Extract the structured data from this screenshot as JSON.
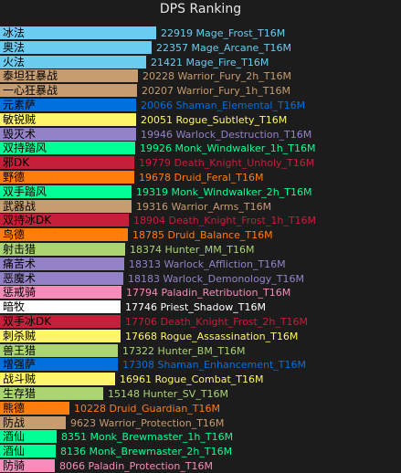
{
  "chart_data": {
    "type": "bar",
    "orientation": "horizontal",
    "title": "DPS Ranking",
    "xlim": [
      0,
      23500
    ],
    "grid": false,
    "legend": "none",
    "categories": [
      "冰法",
      "奥法",
      "火法",
      "泰坦狂暴战",
      "一心狂暴战",
      "元素萨",
      "敏锐贼",
      "毁灭术",
      "双持踏风",
      "邪DK",
      "野德",
      "双手踏风",
      "武器战",
      "双持冰DK",
      "鸟德",
      "射击猎",
      "痛苦术",
      "恶魔术",
      "惩戒骑",
      "暗牧",
      "双手冰DK",
      "刺杀贼",
      "兽王猎",
      "增强萨",
      "战斗贼",
      "生存猎",
      "熊德",
      "防战",
      "酒仙",
      "酒仙",
      "防骑"
    ],
    "values": [
      22919,
      22357,
      21421,
      20228,
      20207,
      20066,
      20051,
      19946,
      19926,
      19779,
      19678,
      19319,
      19316,
      18904,
      18785,
      18374,
      18313,
      18183,
      17794,
      17746,
      17706,
      17668,
      17322,
      17308,
      16961,
      15148,
      10228,
      9623,
      8351,
      8136,
      8066
    ],
    "labels": [
      "22919  Mage_Frost_T16M",
      "22357  Mage_Arcane_T16M",
      "21421  Mage_Fire_T16M",
      "20228  Warrior_Fury_2h_T16M",
      "20207  Warrior_Fury_1h_T16M",
      "20066  Shaman_Elemental_T16M",
      "20051  Rogue_Subtlety_T16M",
      "19946  Warlock_Destruction_T16M",
      "19926  Monk_Windwalker_1h_T16M",
      "19779  Death_Knight_Unholy_T16M",
      "19678  Druid_Feral_T16M",
      "19319  Monk_Windwalker_2h_T16M",
      "19316  Warrior_Arms_T16M",
      "18904  Death_Knight_Frost_1h_T16M",
      "18785  Druid_Balance_T16M",
      "18374  Hunter_MM_T16M",
      "18313  Warlock_Affliction_T16M",
      "18183  Warlock_Demonology_T16M",
      "17794  Paladin_Retribution_T16M",
      "17746  Priest_Shadow_T16M",
      "17706  Death_Knight_Frost_2h_T16M",
      "17668  Rogue_Assassination_T16M",
      "17322  Hunter_BM_T16M",
      "17308  Shaman_Enhancement_T16M",
      "16961  Rogue_Combat_T16M",
      "15148  Hunter_SV_T16M",
      "10228  Druid_Guardian_T16M",
      "9623  Warrior_Protection_T16M",
      "8351  Monk_Brewmaster_1h_T16M",
      "8136  Monk_Brewmaster_2h_T16M",
      "8066  Paladin_Protection_T16M"
    ],
    "colors": [
      "#69ccf0",
      "#69ccf0",
      "#69ccf0",
      "#c79c6e",
      "#c79c6e",
      "#0070de",
      "#fff569",
      "#9482c9",
      "#00ff96",
      "#c41f3b",
      "#ff7d0a",
      "#00ff96",
      "#c79c6e",
      "#c41f3b",
      "#ff7d0a",
      "#abd473",
      "#9482c9",
      "#9482c9",
      "#f58cba",
      "#ffffff",
      "#c41f3b",
      "#fff569",
      "#abd473",
      "#0070de",
      "#fff569",
      "#abd473",
      "#ff7d0a",
      "#c79c6e",
      "#00ff96",
      "#00ff96",
      "#f58cba"
    ]
  }
}
